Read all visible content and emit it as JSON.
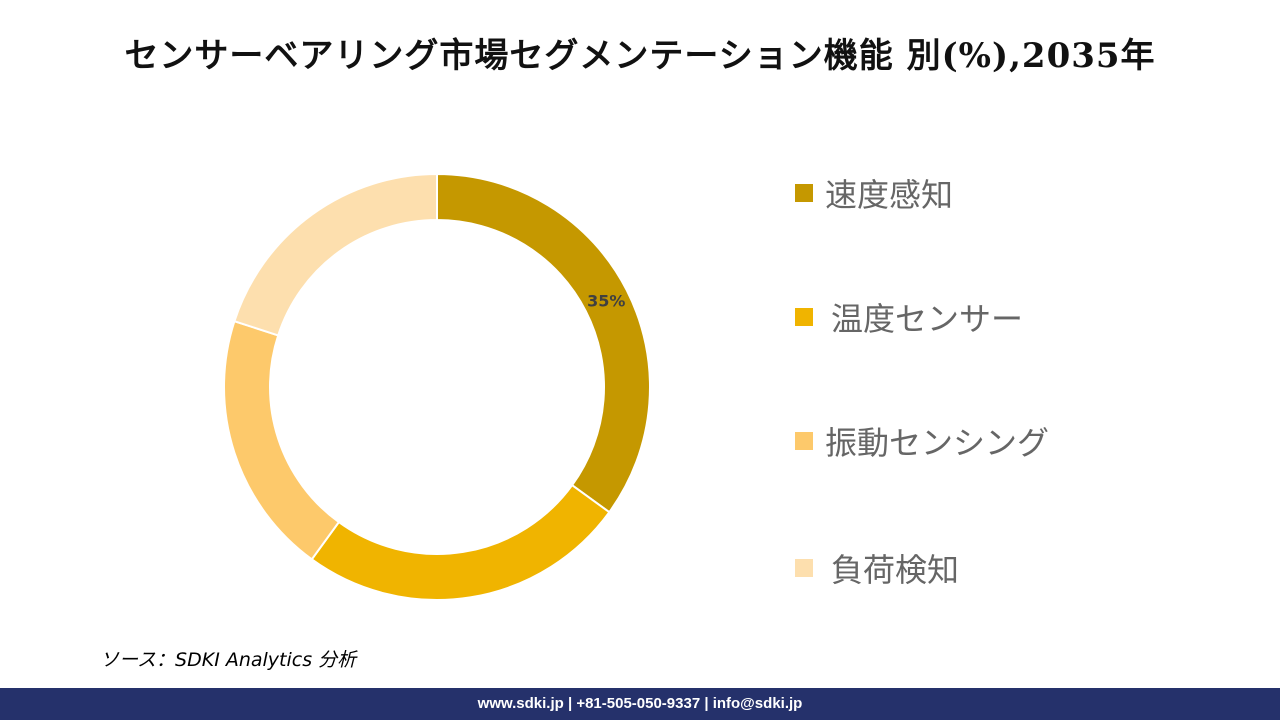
{
  "title": "センサーベアリング市場セグメンテーション機能 別(%),2035年",
  "chart_data": {
    "type": "pie",
    "donut": true,
    "title": "センサーベアリング市場セグメンテーション機能 別(%),2035年",
    "categories": [
      "速度感知",
      "温度センサー",
      "振動センシング",
      "負荷検知"
    ],
    "values": [
      35,
      25,
      20,
      20
    ],
    "colors": [
      "#c59800",
      "#f0b400",
      "#fdc96b",
      "#fddfae"
    ],
    "data_labels": [
      "35%",
      "",
      "",
      ""
    ],
    "legend_position": "right"
  },
  "source": "ソース：SDKI Analytics 分析",
  "footer": "www.sdki.jp | +81-505-050-9337 | info@sdki.jp"
}
